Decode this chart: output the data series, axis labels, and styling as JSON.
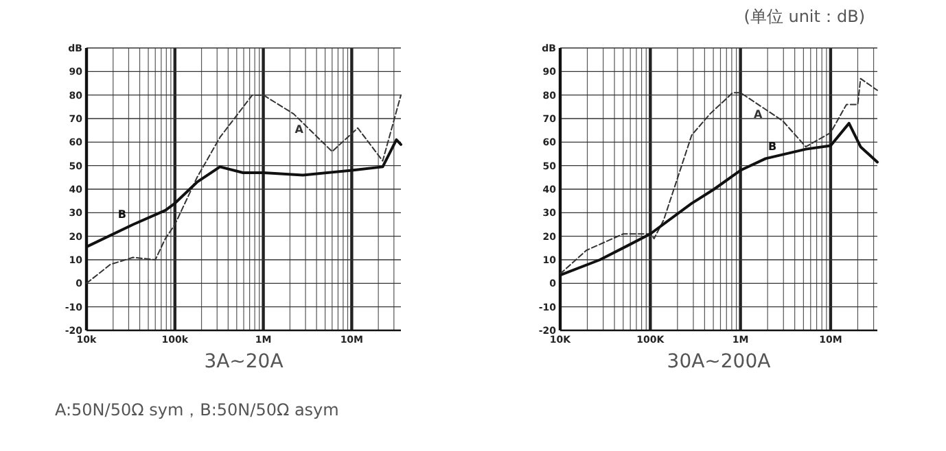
{
  "chart_data": [
    {
      "type": "line",
      "title": "3A~20A",
      "log": "x",
      "grid": true,
      "xlim": [
        10000,
        36000000
      ],
      "xticks": [
        {
          "value": 10000,
          "label": "10k"
        },
        {
          "value": 100000,
          "label": "100k"
        },
        {
          "value": 1000000,
          "label": "1M"
        },
        {
          "value": 10000000,
          "label": "10M"
        }
      ],
      "ylim": [
        -20,
        100
      ],
      "yticks": [
        -20,
        -10,
        0,
        10,
        20,
        30,
        40,
        50,
        60,
        70,
        80,
        90,
        {
          "value": 100,
          "label": "dB"
        }
      ],
      "series": [
        {
          "name": "A",
          "color": "#333333",
          "line_style": "dashed",
          "x": [
            10000,
            18600,
            33700,
            60000,
            78000,
            100000,
            178000,
            323000,
            750000,
            1000000,
            2200000,
            6000000,
            11700000,
            22400000,
            36000000
          ],
          "values": [
            0,
            8,
            11,
            10,
            19,
            25,
            45,
            62,
            80,
            80,
            72,
            56,
            66,
            52,
            80
          ]
        },
        {
          "name": "B",
          "color": "#111111",
          "line_style": "solid",
          "x": [
            10000,
            33700,
            78000,
            100000,
            178000,
            323000,
            590000,
            1000000,
            2800000,
            10000000,
            22400000,
            32000000,
            36000000
          ],
          "values": [
            15.5,
            25,
            31,
            34,
            43,
            49.5,
            47,
            47,
            46,
            48,
            49.5,
            61,
            59
          ]
        }
      ],
      "annotations": [
        "A:50N/50Ω sym，B:50N/50Ω asym"
      ]
    },
    {
      "type": "line",
      "title": "30A~200A",
      "log": "x",
      "grid": true,
      "xlim": [
        10000,
        33000000
      ],
      "xticks": [
        {
          "value": 10000,
          "label": "10K"
        },
        {
          "value": 100000,
          "label": "100K"
        },
        {
          "value": 1000000,
          "label": "1M"
        },
        {
          "value": 10000000,
          "label": "10M"
        }
      ],
      "ylim": [
        -20,
        100
      ],
      "yticks": [
        -20,
        -10,
        0,
        10,
        20,
        30,
        40,
        50,
        60,
        70,
        80,
        90,
        {
          "value": 100,
          "label": "dB"
        }
      ],
      "series": [
        {
          "name": "A",
          "color": "#333333",
          "line_style": "dashed",
          "x": [
            10000,
            19500,
            50000,
            100000,
            110000,
            141000,
            288000,
            460000,
            820000,
            1000000,
            2950000,
            5300000,
            10000000,
            15000000,
            20000000,
            21500000,
            33000000
          ],
          "values": [
            4,
            14,
            21,
            21,
            19,
            27,
            63,
            72,
            81,
            81,
            69,
            58,
            64,
            76,
            76,
            87,
            82
          ]
        },
        {
          "name": "B",
          "color": "#111111",
          "line_style": "solid",
          "x": [
            10000,
            27600,
            56000,
            100000,
            288000,
            510000,
            1000000,
            1900000,
            5300000,
            10000000,
            16000000,
            21500000,
            33000000
          ],
          "values": [
            3.5,
            10,
            16,
            21,
            34,
            40,
            48,
            53,
            57,
            58.5,
            68,
            58,
            51.5
          ]
        }
      ],
      "annotations": [
        "(单位 unit：dB)"
      ]
    }
  ]
}
